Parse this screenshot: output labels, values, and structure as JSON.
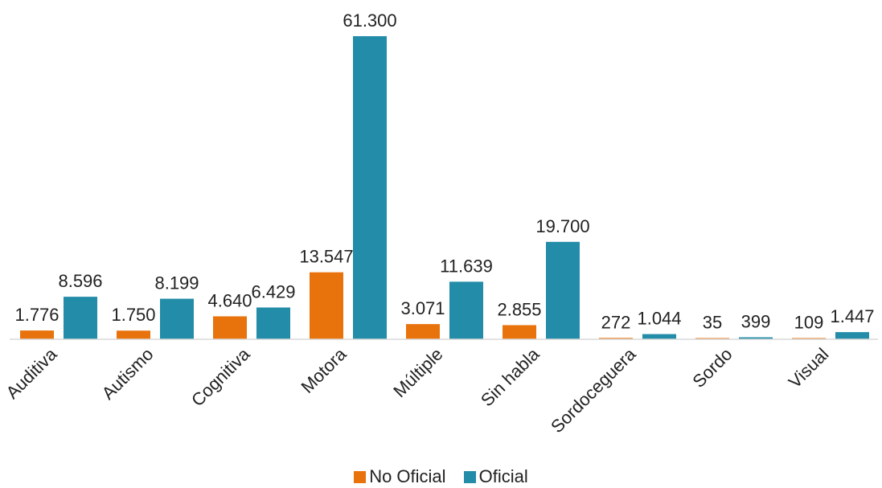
{
  "chart_data": {
    "type": "bar",
    "categories": [
      "Auditiva",
      "Autismo",
      "Cognitiva",
      "Motora",
      "Múltiple",
      "Sin habla",
      "Sordoceguera",
      "Sordo",
      "Visual"
    ],
    "series": [
      {
        "name": "No Oficial",
        "color": "#e8730c",
        "values": [
          1776,
          1750,
          4640,
          13547,
          3071,
          2855,
          272,
          35,
          109
        ],
        "labels": [
          "1.776",
          "1.750",
          "4.640",
          "13.547",
          "3.071",
          "2.855",
          "272",
          "35",
          "109"
        ]
      },
      {
        "name": "Oficial",
        "color": "#238ca8",
        "values": [
          8596,
          8199,
          6429,
          61300,
          11639,
          19700,
          1044,
          399,
          1447
        ],
        "labels": [
          "8.596",
          "8.199",
          "6.429",
          "61.300",
          "11.639",
          "19.700",
          "1.044",
          "399",
          "1.447"
        ]
      }
    ],
    "ylim": [
      0,
      61300
    ],
    "grid": false,
    "legend_position": "bottom"
  }
}
